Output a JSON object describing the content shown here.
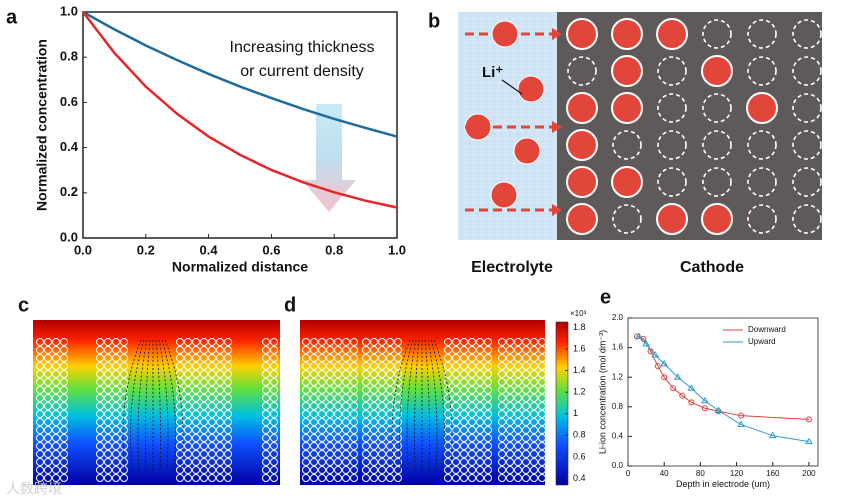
{
  "panel_labels": [
    "a",
    "b",
    "c",
    "d",
    "e"
  ],
  "chart_data": [
    {
      "type": "line",
      "x": [
        0,
        0.1,
        0.2,
        0.3,
        0.4,
        0.5,
        0.6,
        0.7,
        0.8,
        0.9,
        1
      ],
      "series": [
        {
          "color": "#1f6b9e",
          "values": [
            1,
            0.923,
            0.852,
            0.787,
            0.726,
            0.67,
            0.619,
            0.571,
            0.527,
            0.487,
            0.449
          ]
        },
        {
          "color": "#e8262a",
          "values": [
            1,
            0.819,
            0.67,
            0.549,
            0.449,
            0.368,
            0.301,
            0.247,
            0.202,
            0.165,
            0.135
          ]
        }
      ],
      "xlabel": "Normalized distance",
      "ylabel": "Normalized concentration",
      "annotation": [
        "Increasing thickness",
        "or current density"
      ],
      "xlim": [
        0,
        1
      ],
      "ylim": [
        0,
        1
      ],
      "xticks": [
        {
          "value": 0,
          "label": "0.0"
        },
        0.2,
        0.4,
        0.6,
        0.8,
        {
          "value": 1,
          "label": "1.0"
        }
      ],
      "yticks": [
        {
          "value": 0,
          "label": "0.0"
        },
        0.2,
        0.4,
        0.6,
        0.8,
        {
          "value": 1,
          "label": "1.0"
        }
      ]
    },
    {
      "type": "line",
      "series": [
        {
          "name": "Downward",
          "color": "#e0403a",
          "marker": "circle",
          "x": [
            10,
            17,
            25,
            33,
            40,
            50,
            60,
            70,
            85,
            100,
            125,
            200
          ],
          "values": [
            1.75,
            1.72,
            1.55,
            1.35,
            1.2,
            1.05,
            0.95,
            0.86,
            0.78,
            0.74,
            0.68,
            0.63
          ]
        },
        {
          "name": "Upward",
          "color": "#2f9bd0",
          "marker": "triangle",
          "x": [
            12,
            20,
            30,
            40,
            55,
            70,
            85,
            100,
            125,
            160,
            200
          ],
          "values": [
            1.75,
            1.65,
            1.5,
            1.38,
            1.2,
            1.05,
            0.88,
            0.75,
            0.56,
            0.41,
            0.33
          ]
        }
      ],
      "xlabel": "Depth in electrode (um)",
      "ylabel": "Li-ion concentration (mol dm⁻³)",
      "legend": "upper right",
      "xlim": [
        0,
        210
      ],
      "ylim": [
        0,
        2
      ],
      "xticks": [
        0,
        40,
        80,
        120,
        160,
        200
      ],
      "yticks": [
        {
          "value": 0,
          "label": "0.0"
        },
        0.4,
        0.8,
        1.2,
        1.6,
        {
          "value": 2,
          "label": "2.0"
        }
      ]
    }
  ],
  "schematic": {
    "ion_label": "Li⁺",
    "electrolyte_label": "Electrolyte",
    "cathode_label": "Cathode"
  },
  "colorbar": {
    "multiplier": "×10³",
    "lim": [
      0.34,
      1.85
    ],
    "ticks": [
      0.4,
      0.6,
      0.8,
      1,
      1.2,
      1.4,
      1.6,
      1.8
    ]
  },
  "watermark": "人数跨境"
}
